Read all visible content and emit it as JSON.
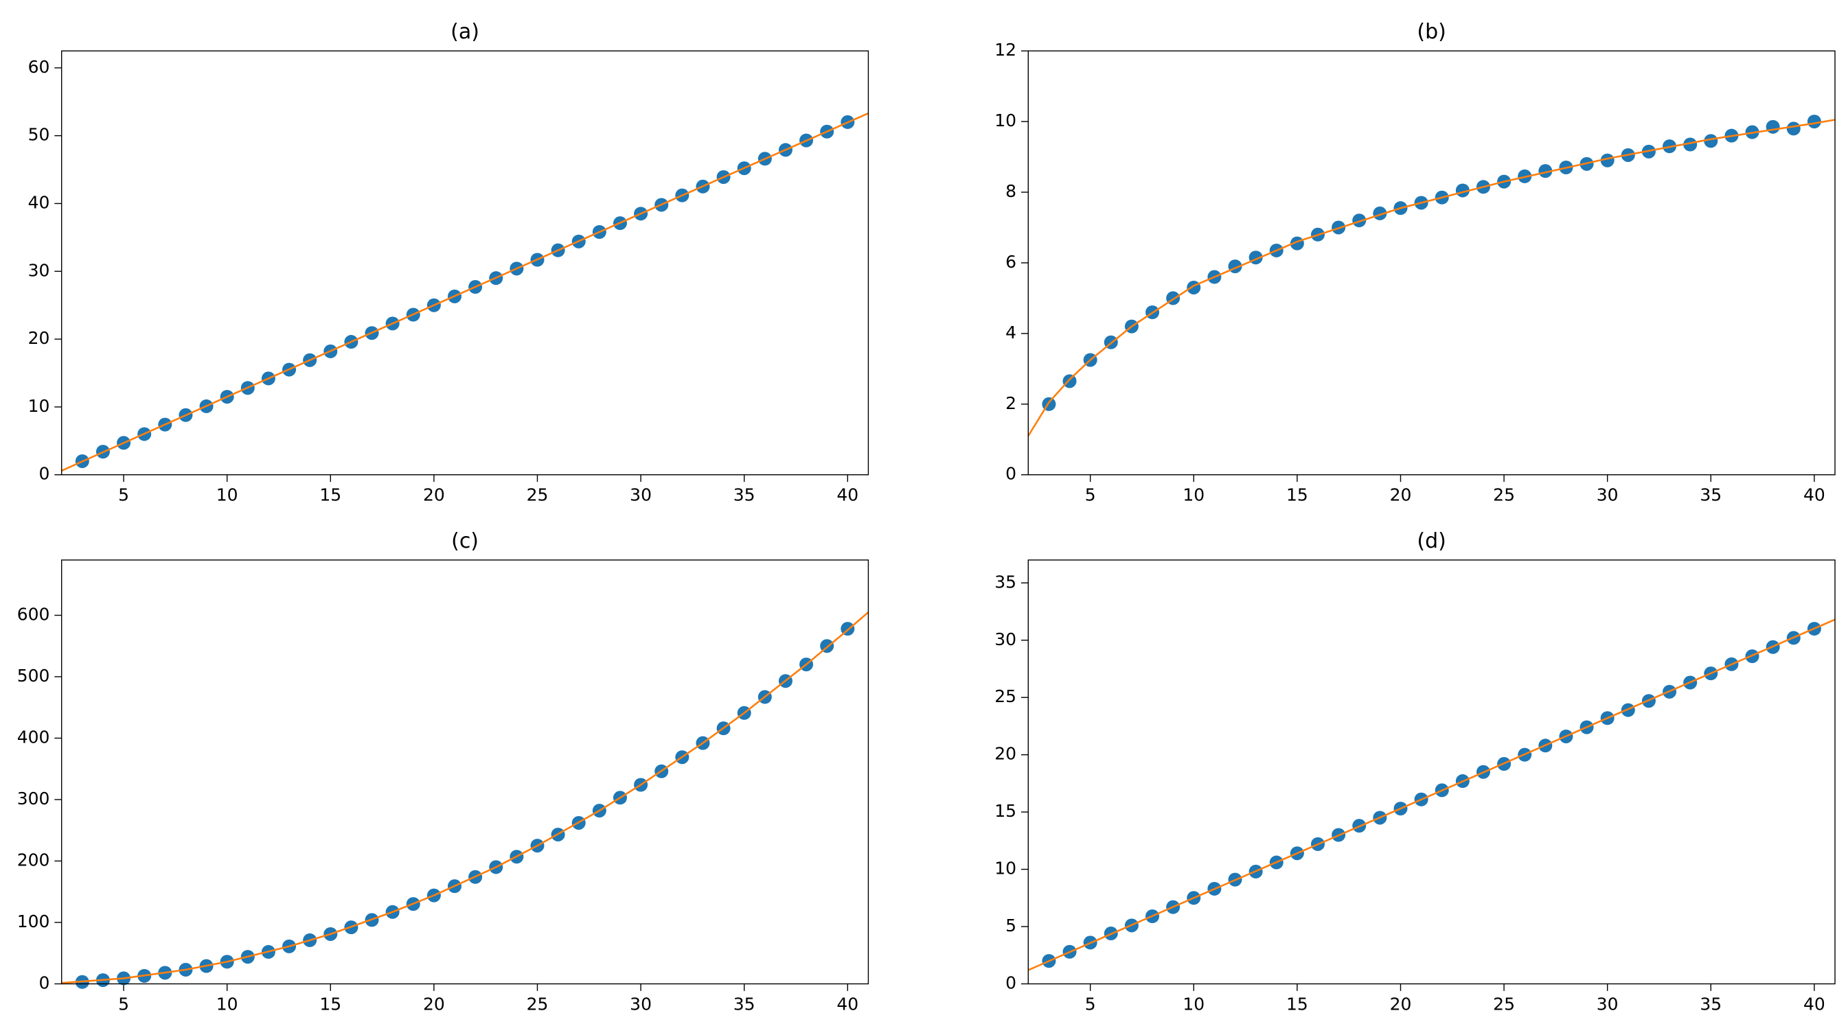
{
  "chart_data": [
    {
      "type": "scatter",
      "title": "(a)",
      "xlim": [
        2,
        41
      ],
      "xticks": [
        5,
        10,
        15,
        20,
        25,
        30,
        35,
        40
      ],
      "ylim": [
        0,
        62.5
      ],
      "yticks": [
        0,
        10,
        20,
        30,
        40,
        50,
        60
      ],
      "x": [
        3,
        4,
        5,
        6,
        7,
        8,
        9,
        10,
        11,
        12,
        13,
        14,
        15,
        16,
        17,
        18,
        19,
        20,
        21,
        22,
        23,
        24,
        25,
        26,
        27,
        28,
        29,
        30,
        31,
        32,
        33,
        34,
        35,
        36,
        37,
        38,
        39,
        40
      ],
      "series": [
        {
          "type": "scatter",
          "color": "#1f77b4",
          "values": [
            2.0,
            3.4,
            4.7,
            6.0,
            7.4,
            8.8,
            10.1,
            11.5,
            12.8,
            14.2,
            15.5,
            16.9,
            18.2,
            19.6,
            20.9,
            22.3,
            23.6,
            25.0,
            26.3,
            27.7,
            29.0,
            30.4,
            31.7,
            33.1,
            34.4,
            35.8,
            37.1,
            38.5,
            39.8,
            41.2,
            42.5,
            43.9,
            45.2,
            46.6,
            47.9,
            49.3,
            50.6,
            52.0
          ]
        },
        {
          "type": "line",
          "color": "#ff7f0e",
          "x": [
            2,
            10,
            20,
            30,
            41
          ],
          "values": [
            0.6,
            11.5,
            25.0,
            38.5,
            53.3
          ]
        }
      ]
    },
    {
      "type": "scatter",
      "title": "(b)",
      "xlim": [
        2,
        41
      ],
      "xticks": [
        5,
        10,
        15,
        20,
        25,
        30,
        35,
        40
      ],
      "ylim": [
        0,
        12
      ],
      "yticks": [
        0,
        2,
        4,
        6,
        8,
        10,
        12
      ],
      "x": [
        3,
        4,
        5,
        6,
        7,
        8,
        9,
        10,
        11,
        12,
        13,
        14,
        15,
        16,
        17,
        18,
        19,
        20,
        21,
        22,
        23,
        24,
        25,
        26,
        27,
        28,
        29,
        30,
        31,
        32,
        33,
        34,
        35,
        36,
        37,
        38,
        39,
        40
      ],
      "series": [
        {
          "type": "scatter",
          "color": "#1f77b4",
          "values": [
            2.0,
            2.65,
            3.25,
            3.75,
            4.2,
            4.6,
            5.0,
            5.3,
            5.6,
            5.9,
            6.15,
            6.35,
            6.55,
            6.8,
            7.0,
            7.2,
            7.4,
            7.55,
            7.7,
            7.85,
            8.05,
            8.15,
            8.3,
            8.45,
            8.6,
            8.7,
            8.8,
            8.9,
            9.05,
            9.15,
            9.3,
            9.35,
            9.45,
            9.6,
            9.7,
            9.85,
            9.8,
            10.0
          ]
        },
        {
          "type": "line",
          "color": "#ff7f0e",
          "x": [
            2,
            3,
            4,
            5,
            7,
            10,
            15,
            20,
            25,
            30,
            35,
            40,
            41
          ],
          "values": [
            1.1,
            2.05,
            2.7,
            3.25,
            4.2,
            5.35,
            6.6,
            7.55,
            8.3,
            8.95,
            9.5,
            9.95,
            10.05
          ]
        }
      ]
    },
    {
      "type": "scatter",
      "title": "(c)",
      "xlim": [
        2,
        41
      ],
      "xticks": [
        5,
        10,
        15,
        20,
        25,
        30,
        35,
        40
      ],
      "ylim": [
        0,
        690
      ],
      "yticks": [
        0,
        100,
        200,
        300,
        400,
        500,
        600
      ],
      "x": [
        3,
        4,
        5,
        6,
        7,
        8,
        9,
        10,
        11,
        12,
        13,
        14,
        15,
        16,
        17,
        18,
        19,
        20,
        21,
        22,
        23,
        24,
        25,
        26,
        27,
        28,
        29,
        30,
        31,
        32,
        33,
        34,
        35,
        36,
        37,
        38,
        39,
        40
      ],
      "series": [
        {
          "type": "scatter",
          "color": "#1f77b4",
          "values": [
            3,
            6,
            9,
            13,
            18,
            23,
            29,
            36,
            44,
            52,
            61,
            71,
            81,
            92,
            104,
            117,
            130,
            144,
            159,
            174,
            190,
            207,
            225,
            243,
            262,
            282,
            303,
            324,
            346,
            369,
            392,
            416,
            441,
            467,
            493,
            520,
            550,
            578
          ]
        },
        {
          "type": "line",
          "color": "#ff7f0e",
          "x": [
            2,
            5,
            8,
            10,
            13,
            15,
            18,
            20,
            23,
            25,
            28,
            30,
            33,
            35,
            38,
            40,
            41
          ],
          "values": [
            1.4,
            9,
            23,
            36,
            61,
            81,
            117,
            144,
            190,
            225,
            282,
            324,
            392,
            441,
            520,
            576,
            605
          ]
        }
      ]
    },
    {
      "type": "scatter",
      "title": "(d)",
      "xlim": [
        2,
        41
      ],
      "xticks": [
        5,
        10,
        15,
        20,
        25,
        30,
        35,
        40
      ],
      "ylim": [
        0,
        37
      ],
      "yticks": [
        0,
        5,
        10,
        15,
        20,
        25,
        30,
        35
      ],
      "x": [
        3,
        4,
        5,
        6,
        7,
        8,
        9,
        10,
        11,
        12,
        13,
        14,
        15,
        16,
        17,
        18,
        19,
        20,
        21,
        22,
        23,
        24,
        25,
        26,
        27,
        28,
        29,
        30,
        31,
        32,
        33,
        34,
        35,
        36,
        37,
        38,
        39,
        40
      ],
      "series": [
        {
          "type": "scatter",
          "color": "#1f77b4",
          "values": [
            2.0,
            2.8,
            3.6,
            4.4,
            5.1,
            5.9,
            6.7,
            7.5,
            8.3,
            9.1,
            9.8,
            10.6,
            11.4,
            12.2,
            13.0,
            13.8,
            14.5,
            15.3,
            16.1,
            16.9,
            17.7,
            18.5,
            19.2,
            20.0,
            20.8,
            21.6,
            22.4,
            23.2,
            23.9,
            24.7,
            25.5,
            26.3,
            27.1,
            27.9,
            28.6,
            29.4,
            30.2,
            31.0
          ]
        },
        {
          "type": "line",
          "color": "#ff7f0e",
          "x": [
            2,
            10,
            20,
            30,
            41
          ],
          "values": [
            1.2,
            7.5,
            15.3,
            23.2,
            31.8
          ]
        }
      ]
    }
  ]
}
